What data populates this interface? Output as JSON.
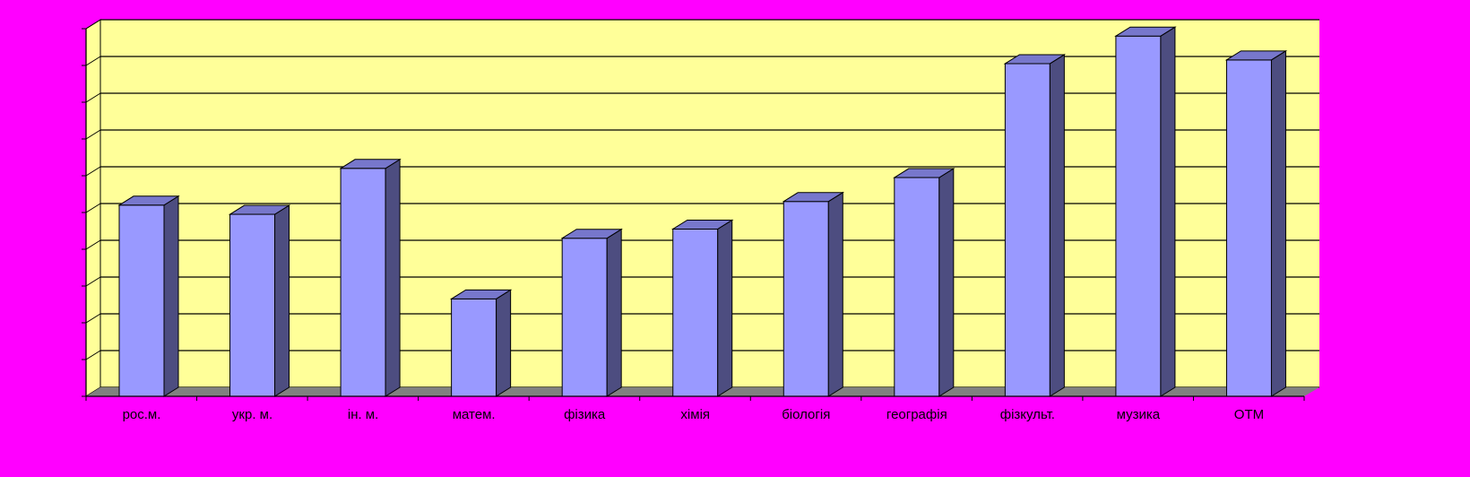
{
  "chart_data": {
    "type": "bar",
    "categories": [
      "рос.м.",
      "укр. м.",
      "ін. м.",
      "матем.",
      "фізика",
      "хімія",
      "біологія",
      "географія",
      "фізкульт.",
      "музика",
      "ОТМ"
    ],
    "values": [
      5.2,
      4.95,
      6.2,
      2.65,
      4.3,
      4.55,
      5.3,
      5.95,
      9.05,
      9.8,
      9.15
    ],
    "ylim": [
      0,
      10
    ],
    "y_gridlines": 10,
    "y_tick_labels_visible": false,
    "grid": true,
    "legend": "none",
    "three_d": true,
    "colors": {
      "page_background": "#FF00FF",
      "plot_background": "#FFFF99",
      "floor": "#808080",
      "bar_front": "#9999FF",
      "bar_side": "#4D4D80",
      "bar_top": "#7777CC",
      "gridline": "#000000"
    }
  }
}
